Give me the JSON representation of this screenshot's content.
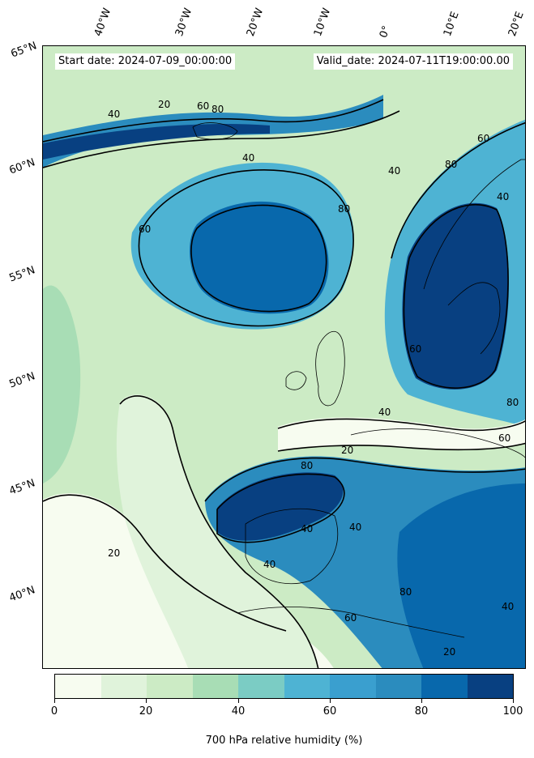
{
  "map": {
    "start_date": "Start date: 2024-07-09_00:00:00",
    "valid_date": "Valid_date: 2024-07-11T19:00:00.00",
    "longitude_labels": [
      "40°W",
      "30°W",
      "20°W",
      "10°W",
      "0°",
      "10°E",
      "20°E"
    ],
    "latitude_labels": [
      "65°N",
      "60°N",
      "55°N",
      "50°N",
      "45°N",
      "40°N"
    ],
    "contour_labels": [
      "20",
      "40",
      "60",
      "80",
      "40",
      "60",
      "80",
      "40",
      "80",
      "60",
      "60",
      "40",
      "20",
      "80",
      "40",
      "40",
      "40",
      "60",
      "80",
      "60",
      "80",
      "40",
      "20",
      "40",
      "20"
    ],
    "colormap": [
      "#f7fcf0",
      "#e0f3db",
      "#ccebc5",
      "#a8ddb5",
      "#7bccc4",
      "#4eb3d3",
      "#3a9fcf",
      "#2b8cbe",
      "#0868ac",
      "#084081"
    ]
  },
  "colorbar": {
    "ticks": [
      "0",
      "20",
      "40",
      "60",
      "80",
      "100"
    ],
    "title": "700 hPa relative humidity (%)"
  }
}
